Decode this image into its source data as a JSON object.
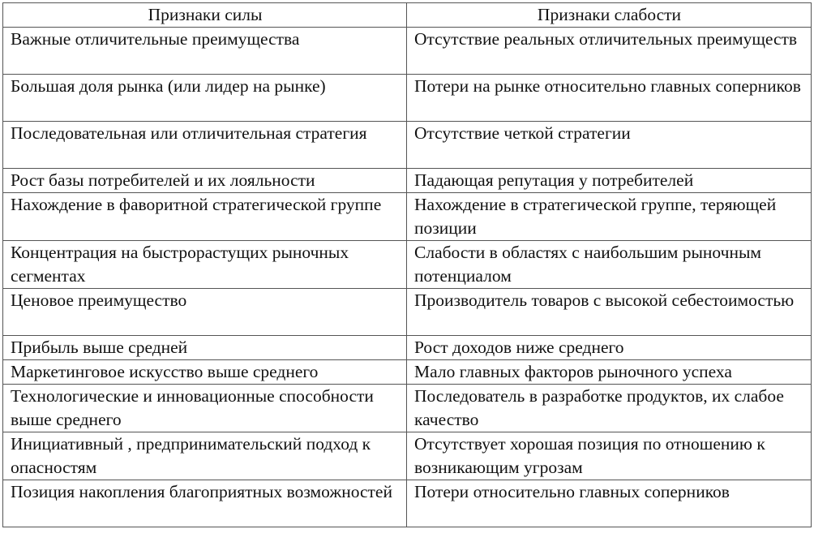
{
  "table": {
    "headers": [
      "Признаки силы",
      "Признаки слабости"
    ],
    "rows": [
      {
        "strength": "Важные отличительные преимущества",
        "weakness": "Отсутствие реальных отличительных преимуществ"
      },
      {
        "strength": "Большая доля рынка (или лидер на рынке)",
        "weakness": "Потери на рынке относительно главных соперников"
      },
      {
        "strength": "Последовательная или отличительная стратегия",
        "weakness": "Отсутствие четкой стратегии"
      },
      {
        "strength": "Рост базы потребителей и их лояльности",
        "weakness": "Падающая репутация у потребителей"
      },
      {
        "strength": "Нахождение в фаворитной стратегической группе",
        "weakness": "Нахождение в стратегической группе, теряющей позиции"
      },
      {
        "strength": "Концентрация на быстрорастущих рыночных сегментах",
        "weakness": "Слабости в областях с наибольшим рыночным потенциалом"
      },
      {
        "strength": "Ценовое преимущество",
        "weakness": "Производитель товаров с высокой себестоимостью"
      },
      {
        "strength": "Прибыль выше средней",
        "weakness": "Рост доходов ниже среднего"
      },
      {
        "strength": "Маркетинговое искусство выше среднего",
        "weakness": "Мало главных факторов рыночного успеха"
      },
      {
        "strength": "Технологические и инновационные способности выше среднего",
        "weakness": "Последователь в разработке продуктов, их слабое качество"
      },
      {
        "strength": "Инициативный , предпринимательский подход к опасностям",
        "weakness": "Отсутствует хорошая позиция по отношению к возникающим угрозам"
      },
      {
        "strength": "Позиция накопления благоприятных возможностей",
        "weakness": "Потери относительно главных соперников"
      }
    ]
  }
}
